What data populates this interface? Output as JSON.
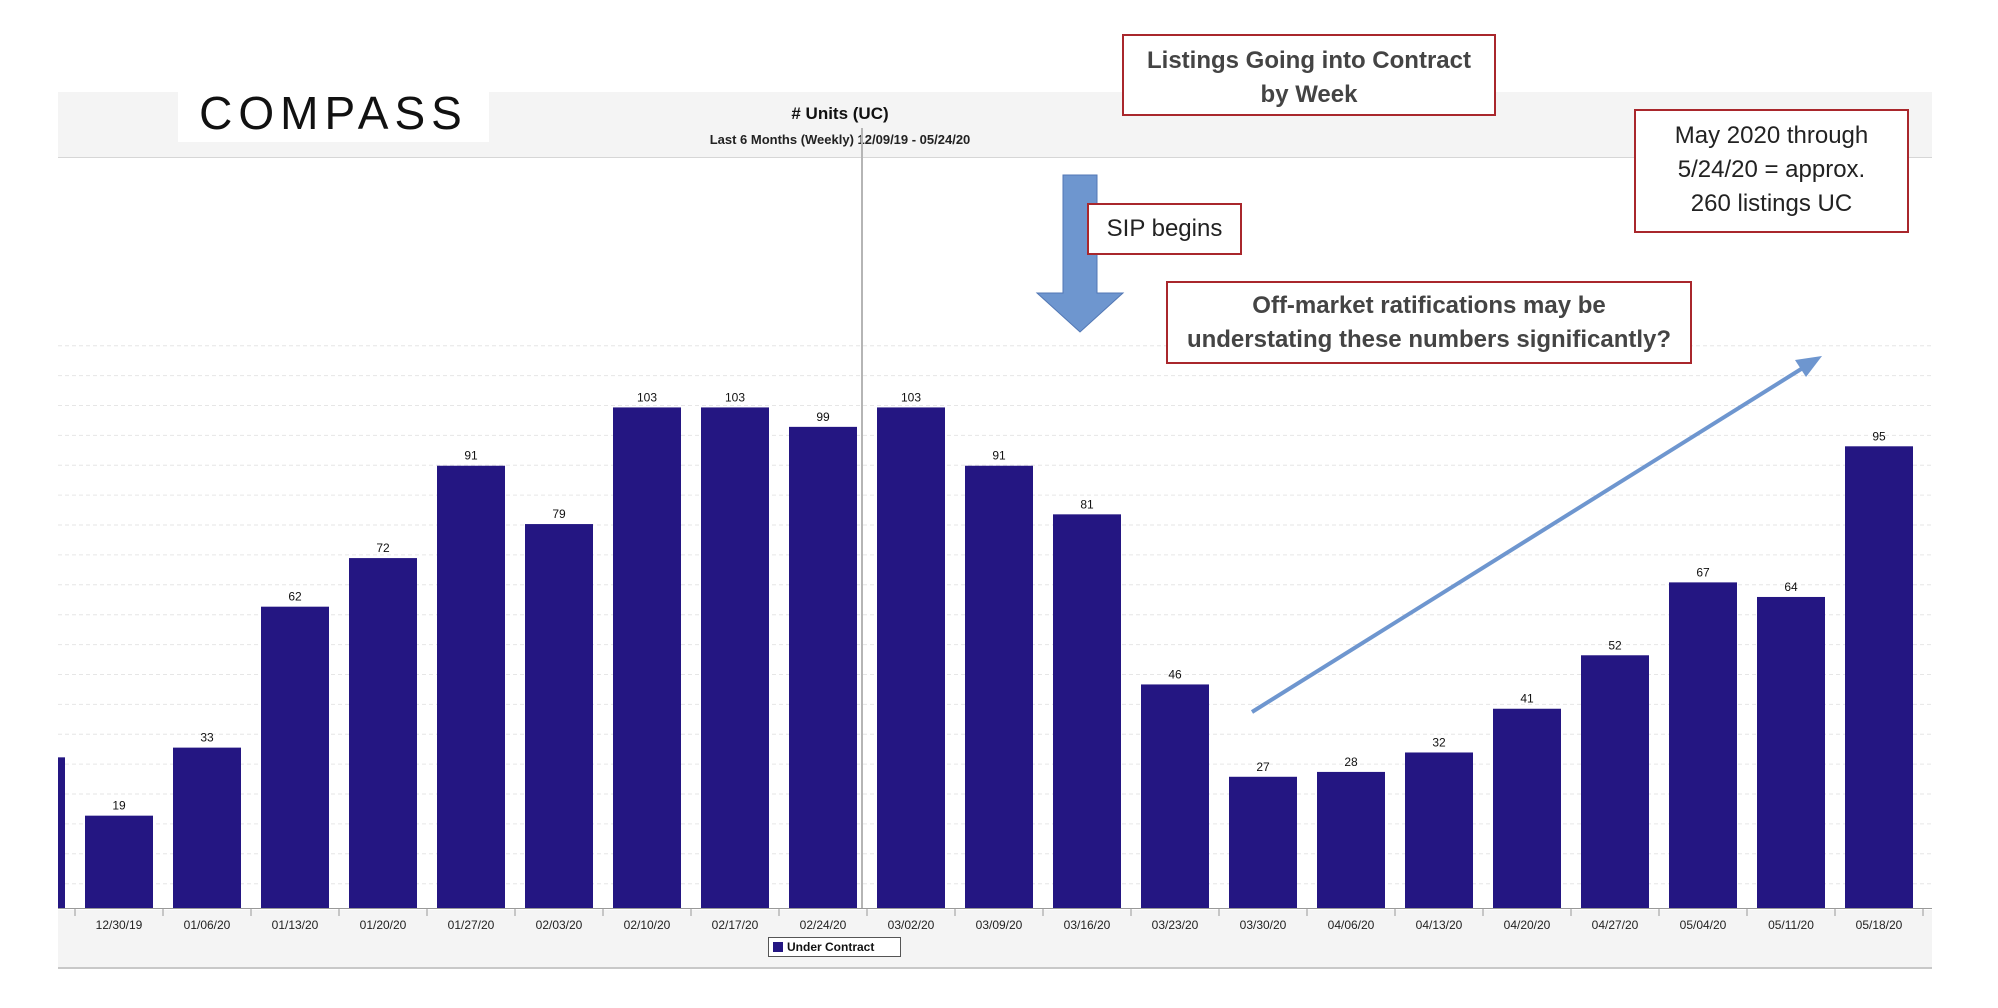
{
  "logo": {
    "text": "COMPASS"
  },
  "callouts": {
    "title": [
      "Listings Going into Contract",
      "by Week"
    ],
    "may_total": [
      "May 2020 through",
      "5/24/20 = approx.",
      "260 listings UC"
    ],
    "sip": "SIP begins",
    "off_market": [
      "Off-market ratifications may be",
      "understating these numbers significantly?"
    ]
  },
  "colors": {
    "bar": "#241682",
    "arrow": "#6e96cf",
    "callout_border": "#a9272c"
  },
  "chart_data": {
    "type": "bar",
    "title": "# Units (UC)",
    "subtitle": "Last 6 Months (Weekly) 12/09/19 - 05/24/20",
    "categories": [
      "",
      "12/30/19",
      "01/06/20",
      "01/13/20",
      "01/20/20",
      "01/27/20",
      "02/03/20",
      "02/10/20",
      "02/17/20",
      "02/24/20",
      "03/02/20",
      "03/09/20",
      "03/16/20",
      "03/23/20",
      "03/30/20",
      "04/06/20",
      "04/13/20",
      "04/20/20",
      "04/27/20",
      "05/04/20",
      "05/11/20",
      "05/18/20"
    ],
    "series": [
      {
        "name": "Under Contract",
        "values": [
          31,
          19,
          33,
          62,
          72,
          91,
          79,
          103,
          103,
          99,
          103,
          91,
          81,
          46,
          27,
          28,
          32,
          41,
          52,
          67,
          64,
          95
        ],
        "labels": [
          "",
          "19",
          "33",
          "62",
          "72",
          "91",
          "79",
          "103",
          "103",
          "99",
          "103",
          "91",
          "81",
          "46",
          "27",
          "28",
          "32",
          "41",
          "52",
          "67",
          "64",
          "95"
        ]
      }
    ],
    "ylim": [
      0,
      124
    ],
    "grid": true,
    "legend": "bottom-center",
    "annotations": [
      "SIP begins arrow above 03/16/20",
      "trend arrow from 03/30/20 to 05/11/20"
    ]
  }
}
